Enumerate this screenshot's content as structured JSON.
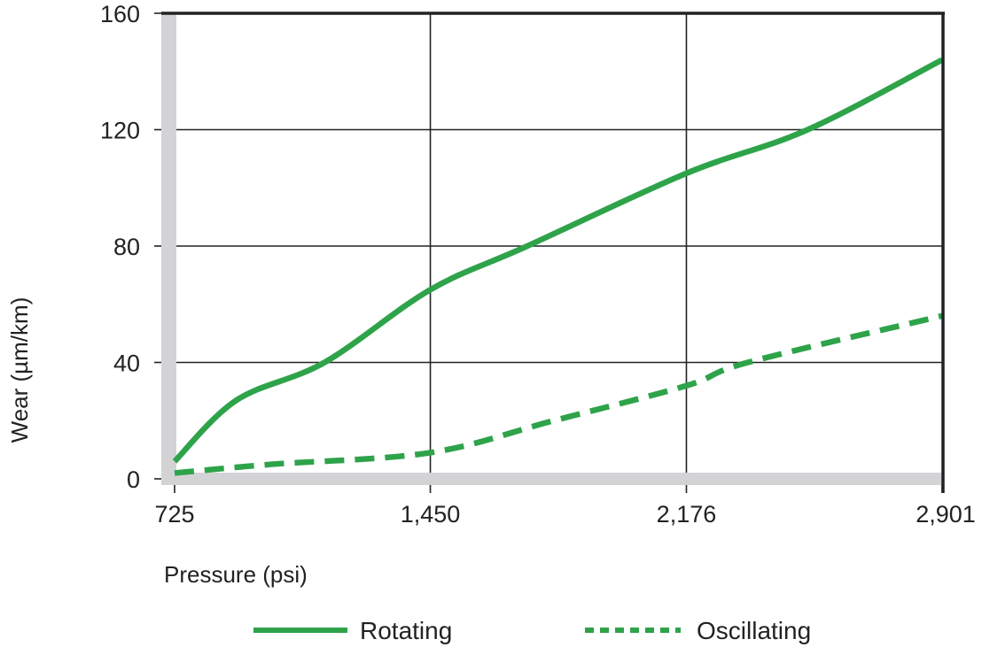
{
  "chart_data": {
    "type": "line",
    "title": "",
    "xlabel": "Pressure (psi)",
    "ylabel": "Wear (µm/km)",
    "xlim": [
      725,
      2901
    ],
    "ylim": [
      0,
      160
    ],
    "x_ticks": [
      725,
      1450,
      2176,
      2901
    ],
    "x_tick_labels": [
      "725",
      "1,450",
      "2,176",
      "2,901"
    ],
    "y_ticks": [
      0,
      40,
      80,
      120,
      160
    ],
    "y_tick_labels": [
      "0",
      "40",
      "80",
      "120",
      "160"
    ],
    "grid": true,
    "legend_position": "bottom",
    "series": [
      {
        "name": "Rotating",
        "style": "solid",
        "color": "#2ea34a",
        "x": [
          725,
          900,
          1150,
          1450,
          1725,
          2176,
          2520,
          2901
        ],
        "y": [
          6,
          27,
          40,
          65,
          80,
          105,
          120,
          144
        ]
      },
      {
        "name": "Oscillating",
        "style": "dashed",
        "color": "#2ea34a",
        "x": [
          725,
          1000,
          1450,
          1800,
          2176,
          2350,
          2901
        ],
        "y": [
          2,
          5,
          9,
          20,
          32,
          40,
          56
        ]
      }
    ]
  },
  "colors": {
    "series": "#2ea34a",
    "grid": "#222222",
    "axis_bar": "#d3d3d5",
    "text": "#222222"
  },
  "legend": {
    "items": [
      {
        "label": "Rotating",
        "style": "solid"
      },
      {
        "label": "Oscillating",
        "style": "dashed"
      }
    ]
  }
}
